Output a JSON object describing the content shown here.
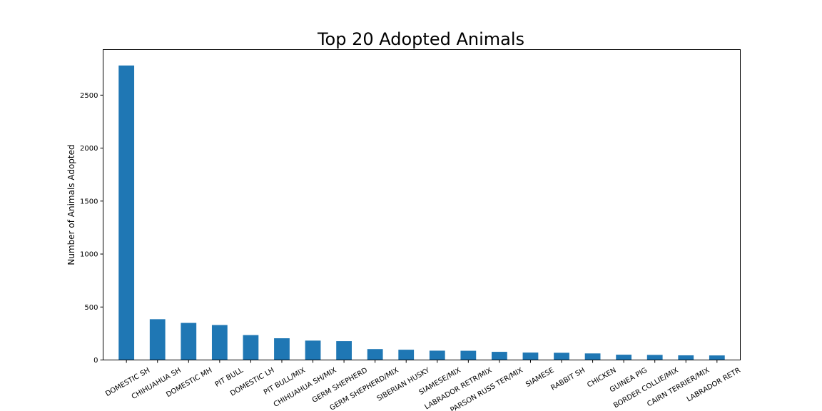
{
  "chart_data": {
    "type": "bar",
    "title": "Top 20 Adopted Animals",
    "xlabel": "",
    "ylabel": "Number of Animals Adopted",
    "ylim": [
      0,
      2930
    ],
    "yticks": [
      0,
      500,
      1000,
      1500,
      2000,
      2500
    ],
    "grid": false,
    "bar_color": "#1f77b4",
    "categories": [
      "DOMESTIC SH",
      "CHIHUAHUA SH",
      "DOMESTIC MH",
      "PIT BULL",
      "DOMESTIC LH",
      "PIT BULL/MIX",
      "CHIHUAHUA SH/MIX",
      "GERM SHEPHERD",
      "GERM SHEPHERD/MIX",
      "SIBERIAN HUSKY",
      "SIAMESE/MIX",
      "LABRADOR RETR/MIX",
      "PARSON RUSS TER/MIX",
      "SIAMESE",
      "RABBIT SH",
      "CHICKEN",
      "GUINEA PIG",
      "BORDER COLLIE/MIX",
      "CAIRN TERRIER/MIX",
      "LABRADOR RETR"
    ],
    "values": [
      2780,
      385,
      350,
      330,
      235,
      205,
      183,
      178,
      103,
      97,
      88,
      87,
      77,
      70,
      68,
      62,
      50,
      48,
      44,
      43
    ]
  }
}
